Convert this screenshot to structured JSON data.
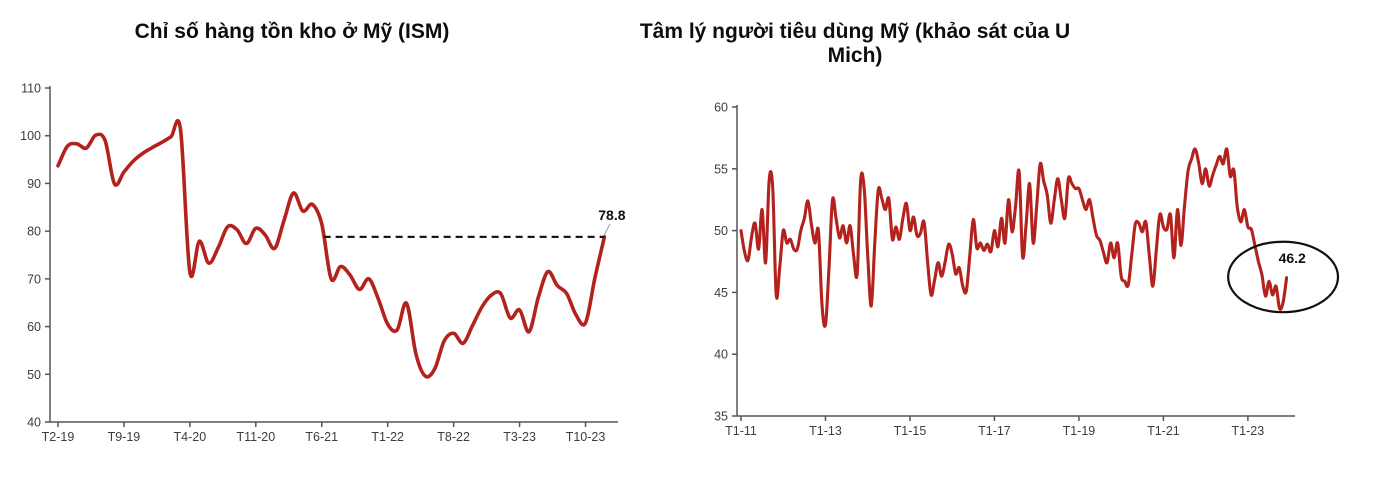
{
  "page": {
    "background": "#ffffff"
  },
  "left_chart_title": "Chỉ số hàng tồn kho ở Mỹ (ISM)",
  "right_chart_title": "Tâm lý người tiêu dùng Mỹ (khảo sát của U Mich)",
  "chart_data": [
    {
      "type": "line",
      "title": "Chỉ số hàng tồn kho ở Mỹ (ISM)",
      "x_unit": "month",
      "line_color": "#B3221D",
      "grid": false,
      "legend": null,
      "ylim": [
        40,
        110
      ],
      "yticks": [
        110,
        100,
        90,
        80,
        70,
        60,
        50,
        40
      ],
      "xticks": [
        {
          "i": 0,
          "label": "T2-19"
        },
        {
          "i": 7,
          "label": "T9-19"
        },
        {
          "i": 14,
          "label": "T4-20"
        },
        {
          "i": 21,
          "label": "T11-20"
        },
        {
          "i": 28,
          "label": "T6-21"
        },
        {
          "i": 35,
          "label": "T1-22"
        },
        {
          "i": 42,
          "label": "T8-22"
        },
        {
          "i": 49,
          "label": "T3-23"
        },
        {
          "i": 56,
          "label": "T10-23"
        }
      ],
      "values": [
        93.7,
        97.8,
        98.3,
        97.4,
        100.1,
        99.0,
        89.9,
        92.4,
        94.7,
        96.3,
        97.5,
        98.6,
        99.8,
        101.3,
        71.4,
        77.9,
        73.3,
        76.5,
        80.9,
        80.3,
        77.4,
        80.6,
        79.2,
        76.4,
        82.3,
        88.0,
        84.2,
        85.6,
        81.5,
        70.0,
        72.6,
        70.8,
        67.8,
        70.0,
        65.8,
        60.5,
        59.3,
        64.9,
        54.2,
        49.6,
        51.2,
        57.0,
        58.6,
        56.5,
        60.2,
        64.1,
        66.6,
        66.9,
        61.8,
        63.5,
        58.9,
        66.2,
        71.5,
        68.6,
        66.9,
        62.4,
        60.8,
        70.2,
        78.8
      ],
      "annotations": {
        "last_value_label": "78.8",
        "dashed_line_value": 78.8,
        "dashed_line_start_index": 28.2,
        "label_pos": {
          "i": 58.8,
          "v": 83.4
        }
      }
    },
    {
      "type": "line",
      "title": "Tâm lý người tiêu dùng Mỹ (khảo sát của U Mich)",
      "x_unit": "month",
      "line_color": "#B3221D",
      "grid": false,
      "legend": null,
      "ylim": [
        35,
        60
      ],
      "yticks": [
        60,
        55,
        50,
        45,
        40,
        35
      ],
      "xticks": [
        {
          "i": 0,
          "label": "T1-11"
        },
        {
          "i": 24,
          "label": "T1-13"
        },
        {
          "i": 48,
          "label": "T1-15"
        },
        {
          "i": 72,
          "label": "T1-17"
        },
        {
          "i": 96,
          "label": "T1-19"
        },
        {
          "i": 120,
          "label": "T1-21"
        },
        {
          "i": 144,
          "label": "T1-23"
        }
      ],
      "values": [
        50.0,
        48.3,
        47.6,
        49.5,
        50.6,
        48.5,
        51.7,
        47.4,
        54.1,
        53.5,
        44.8,
        47.0,
        50.0,
        49.0,
        49.3,
        48.5,
        48.5,
        50.0,
        51.0,
        52.4,
        50.5,
        49.0,
        50.0,
        44.0,
        42.4,
        47.0,
        52.5,
        51.0,
        49.4,
        50.4,
        49.0,
        50.4,
        48.0,
        46.5,
        54.1,
        53.4,
        48.0,
        43.9,
        49.0,
        53.3,
        52.6,
        51.7,
        52.6,
        49.3,
        50.3,
        49.3,
        51.0,
        52.2,
        50.0,
        51.1,
        49.6,
        49.8,
        50.7,
        47.5,
        44.8,
        46.0,
        47.4,
        46.3,
        47.5,
        48.9,
        48.1,
        46.5,
        47.0,
        45.5,
        45.1,
        48.0,
        50.9,
        48.6,
        49.0,
        48.4,
        48.9,
        48.3,
        50.0,
        48.7,
        51.0,
        49.0,
        52.5,
        49.9,
        52.0,
        54.8,
        47.9,
        50.5,
        53.8,
        49.0,
        52.0,
        55.4,
        54.0,
        52.9,
        50.6,
        52.5,
        54.2,
        52.5,
        51.0,
        54.2,
        53.8,
        53.4,
        53.4,
        52.5,
        51.7,
        52.5,
        51.0,
        49.6,
        49.2,
        48.2,
        47.4,
        49.0,
        47.8,
        49.0,
        46.3,
        45.9,
        45.6,
        48.0,
        50.5,
        50.6,
        49.9,
        50.7,
        48.0,
        45.5,
        48.5,
        51.3,
        50.3,
        50.1,
        51.3,
        47.8,
        51.7,
        48.8,
        52.0,
        54.8,
        55.8,
        56.6,
        55.5,
        53.8,
        55.0,
        53.6,
        54.5,
        55.3,
        56.0,
        55.4,
        56.6,
        54.4,
        54.9,
        51.9,
        50.7,
        51.7,
        50.3,
        50.1,
        48.8,
        47.5,
        46.4,
        44.7,
        45.9,
        44.8,
        45.5,
        43.7,
        44.2,
        46.2
      ],
      "annotations": {
        "last_value_label": "46.2",
        "ellipse": {
          "center_i": 154.0,
          "center_v": 46.25,
          "rx_i": 15.6,
          "ry_v": 2.85
        },
        "label_pos": {
          "i": 156.6,
          "v": 47.8
        }
      }
    }
  ]
}
